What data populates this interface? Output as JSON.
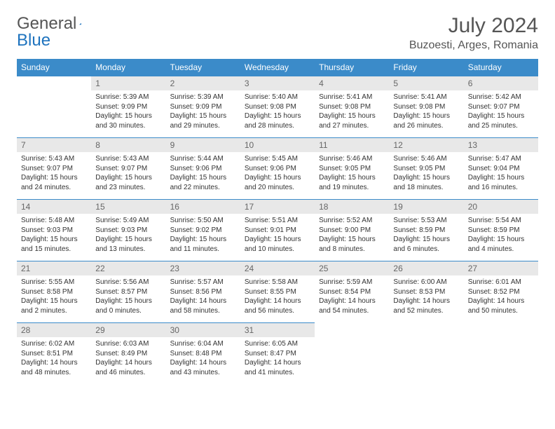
{
  "logo": {
    "part1": "General",
    "part2": "Blue"
  },
  "title": "July 2024",
  "location": "Buzoesti, Arges, Romania",
  "colors": {
    "header_bg": "#3b8bc9",
    "header_text": "#ffffff",
    "daynum_bg": "#e8e8e8",
    "text": "#333333",
    "accent": "#1e73be"
  },
  "weekdays": [
    "Sunday",
    "Monday",
    "Tuesday",
    "Wednesday",
    "Thursday",
    "Friday",
    "Saturday"
  ],
  "weeks": [
    [
      null,
      {
        "n": "1",
        "sr": "5:39 AM",
        "ss": "9:09 PM",
        "dl": "15 hours and 30 minutes."
      },
      {
        "n": "2",
        "sr": "5:39 AM",
        "ss": "9:09 PM",
        "dl": "15 hours and 29 minutes."
      },
      {
        "n": "3",
        "sr": "5:40 AM",
        "ss": "9:08 PM",
        "dl": "15 hours and 28 minutes."
      },
      {
        "n": "4",
        "sr": "5:41 AM",
        "ss": "9:08 PM",
        "dl": "15 hours and 27 minutes."
      },
      {
        "n": "5",
        "sr": "5:41 AM",
        "ss": "9:08 PM",
        "dl": "15 hours and 26 minutes."
      },
      {
        "n": "6",
        "sr": "5:42 AM",
        "ss": "9:07 PM",
        "dl": "15 hours and 25 minutes."
      }
    ],
    [
      {
        "n": "7",
        "sr": "5:43 AM",
        "ss": "9:07 PM",
        "dl": "15 hours and 24 minutes."
      },
      {
        "n": "8",
        "sr": "5:43 AM",
        "ss": "9:07 PM",
        "dl": "15 hours and 23 minutes."
      },
      {
        "n": "9",
        "sr": "5:44 AM",
        "ss": "9:06 PM",
        "dl": "15 hours and 22 minutes."
      },
      {
        "n": "10",
        "sr": "5:45 AM",
        "ss": "9:06 PM",
        "dl": "15 hours and 20 minutes."
      },
      {
        "n": "11",
        "sr": "5:46 AM",
        "ss": "9:05 PM",
        "dl": "15 hours and 19 minutes."
      },
      {
        "n": "12",
        "sr": "5:46 AM",
        "ss": "9:05 PM",
        "dl": "15 hours and 18 minutes."
      },
      {
        "n": "13",
        "sr": "5:47 AM",
        "ss": "9:04 PM",
        "dl": "15 hours and 16 minutes."
      }
    ],
    [
      {
        "n": "14",
        "sr": "5:48 AM",
        "ss": "9:03 PM",
        "dl": "15 hours and 15 minutes."
      },
      {
        "n": "15",
        "sr": "5:49 AM",
        "ss": "9:03 PM",
        "dl": "15 hours and 13 minutes."
      },
      {
        "n": "16",
        "sr": "5:50 AM",
        "ss": "9:02 PM",
        "dl": "15 hours and 11 minutes."
      },
      {
        "n": "17",
        "sr": "5:51 AM",
        "ss": "9:01 PM",
        "dl": "15 hours and 10 minutes."
      },
      {
        "n": "18",
        "sr": "5:52 AM",
        "ss": "9:00 PM",
        "dl": "15 hours and 8 minutes."
      },
      {
        "n": "19",
        "sr": "5:53 AM",
        "ss": "8:59 PM",
        "dl": "15 hours and 6 minutes."
      },
      {
        "n": "20",
        "sr": "5:54 AM",
        "ss": "8:59 PM",
        "dl": "15 hours and 4 minutes."
      }
    ],
    [
      {
        "n": "21",
        "sr": "5:55 AM",
        "ss": "8:58 PM",
        "dl": "15 hours and 2 minutes."
      },
      {
        "n": "22",
        "sr": "5:56 AM",
        "ss": "8:57 PM",
        "dl": "15 hours and 0 minutes."
      },
      {
        "n": "23",
        "sr": "5:57 AM",
        "ss": "8:56 PM",
        "dl": "14 hours and 58 minutes."
      },
      {
        "n": "24",
        "sr": "5:58 AM",
        "ss": "8:55 PM",
        "dl": "14 hours and 56 minutes."
      },
      {
        "n": "25",
        "sr": "5:59 AM",
        "ss": "8:54 PM",
        "dl": "14 hours and 54 minutes."
      },
      {
        "n": "26",
        "sr": "6:00 AM",
        "ss": "8:53 PM",
        "dl": "14 hours and 52 minutes."
      },
      {
        "n": "27",
        "sr": "6:01 AM",
        "ss": "8:52 PM",
        "dl": "14 hours and 50 minutes."
      }
    ],
    [
      {
        "n": "28",
        "sr": "6:02 AM",
        "ss": "8:51 PM",
        "dl": "14 hours and 48 minutes."
      },
      {
        "n": "29",
        "sr": "6:03 AM",
        "ss": "8:49 PM",
        "dl": "14 hours and 46 minutes."
      },
      {
        "n": "30",
        "sr": "6:04 AM",
        "ss": "8:48 PM",
        "dl": "14 hours and 43 minutes."
      },
      {
        "n": "31",
        "sr": "6:05 AM",
        "ss": "8:47 PM",
        "dl": "14 hours and 41 minutes."
      },
      null,
      null,
      null
    ]
  ],
  "labels": {
    "sunrise": "Sunrise:",
    "sunset": "Sunset:",
    "daylight": "Daylight:"
  }
}
